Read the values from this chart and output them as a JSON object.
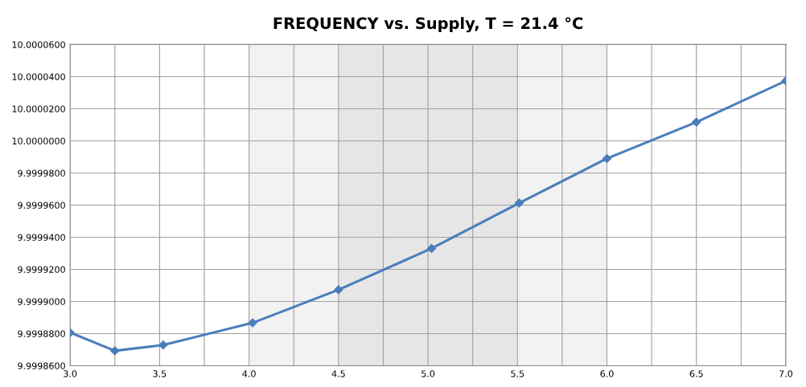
{
  "chart_data": {
    "type": "line",
    "title": "FREQUENCY vs. Supply, T = 21.4 °C",
    "x": [
      3.0,
      3.25,
      3.52,
      4.02,
      4.5,
      5.02,
      5.51,
      6.0,
      6.5,
      7.0
    ],
    "series": [
      {
        "color": "#4a7ebb",
        "values": [
          9.9998806,
          9.9998693,
          9.9998729,
          9.9998867,
          9.9999073,
          9.999933,
          9.9999613,
          9.999989,
          10.0000117,
          10.0000374
        ]
      }
    ],
    "marker": "diamond",
    "line_style": "solid",
    "grid": true,
    "xlim": [
      3.0,
      7.0
    ],
    "xticks": [
      {
        "value": 3,
        "label": "3.0"
      },
      {
        "value": 3.25,
        "label": null
      },
      3.5,
      {
        "value": 3.75,
        "label": null
      },
      {
        "value": 4,
        "label": "4.0"
      },
      {
        "value": 4.25,
        "label": null
      },
      4.5,
      {
        "value": 4.75,
        "label": null
      },
      {
        "value": 5,
        "label": "5.0"
      },
      {
        "value": 5.25,
        "label": null
      },
      5.5,
      {
        "value": 5.75,
        "label": null
      },
      {
        "value": 6,
        "label": "6.0"
      },
      {
        "value": 6.25,
        "label": null
      },
      6.5,
      {
        "value": 6.75,
        "label": null
      },
      {
        "value": 7,
        "label": "7.0"
      }
    ],
    "ylim": [
      9.99986,
      10.00006
    ],
    "yticks": [
      {
        "value": 9.99986,
        "label": "9.9998600"
      },
      {
        "value": 9.99988,
        "label": "9.9998800"
      },
      {
        "value": 9.9999,
        "label": "9.9999000"
      },
      {
        "value": 9.99992,
        "label": "9.9999200"
      },
      {
        "value": 9.99994,
        "label": "9.9999400"
      },
      {
        "value": 9.99996,
        "label": "9.9999600"
      },
      {
        "value": 9.99998,
        "label": "9.9999800"
      },
      {
        "value": 10.0,
        "label": "10.0000000"
      },
      {
        "value": 10.00002,
        "label": "10.0000200"
      },
      {
        "value": 10.00004,
        "label": "10.0000400"
      },
      {
        "value": 10.00006,
        "label": "10.0000600"
      }
    ],
    "bands": [
      {
        "axis": "x",
        "from": 4.0,
        "to": 4.5,
        "color": "#f2f2f2"
      },
      {
        "axis": "x",
        "from": 4.5,
        "to": 5.5,
        "color": "#e6e6e6"
      },
      {
        "axis": "x",
        "from": 5.5,
        "to": 6.0,
        "color": "#f2f2f2"
      }
    ]
  }
}
